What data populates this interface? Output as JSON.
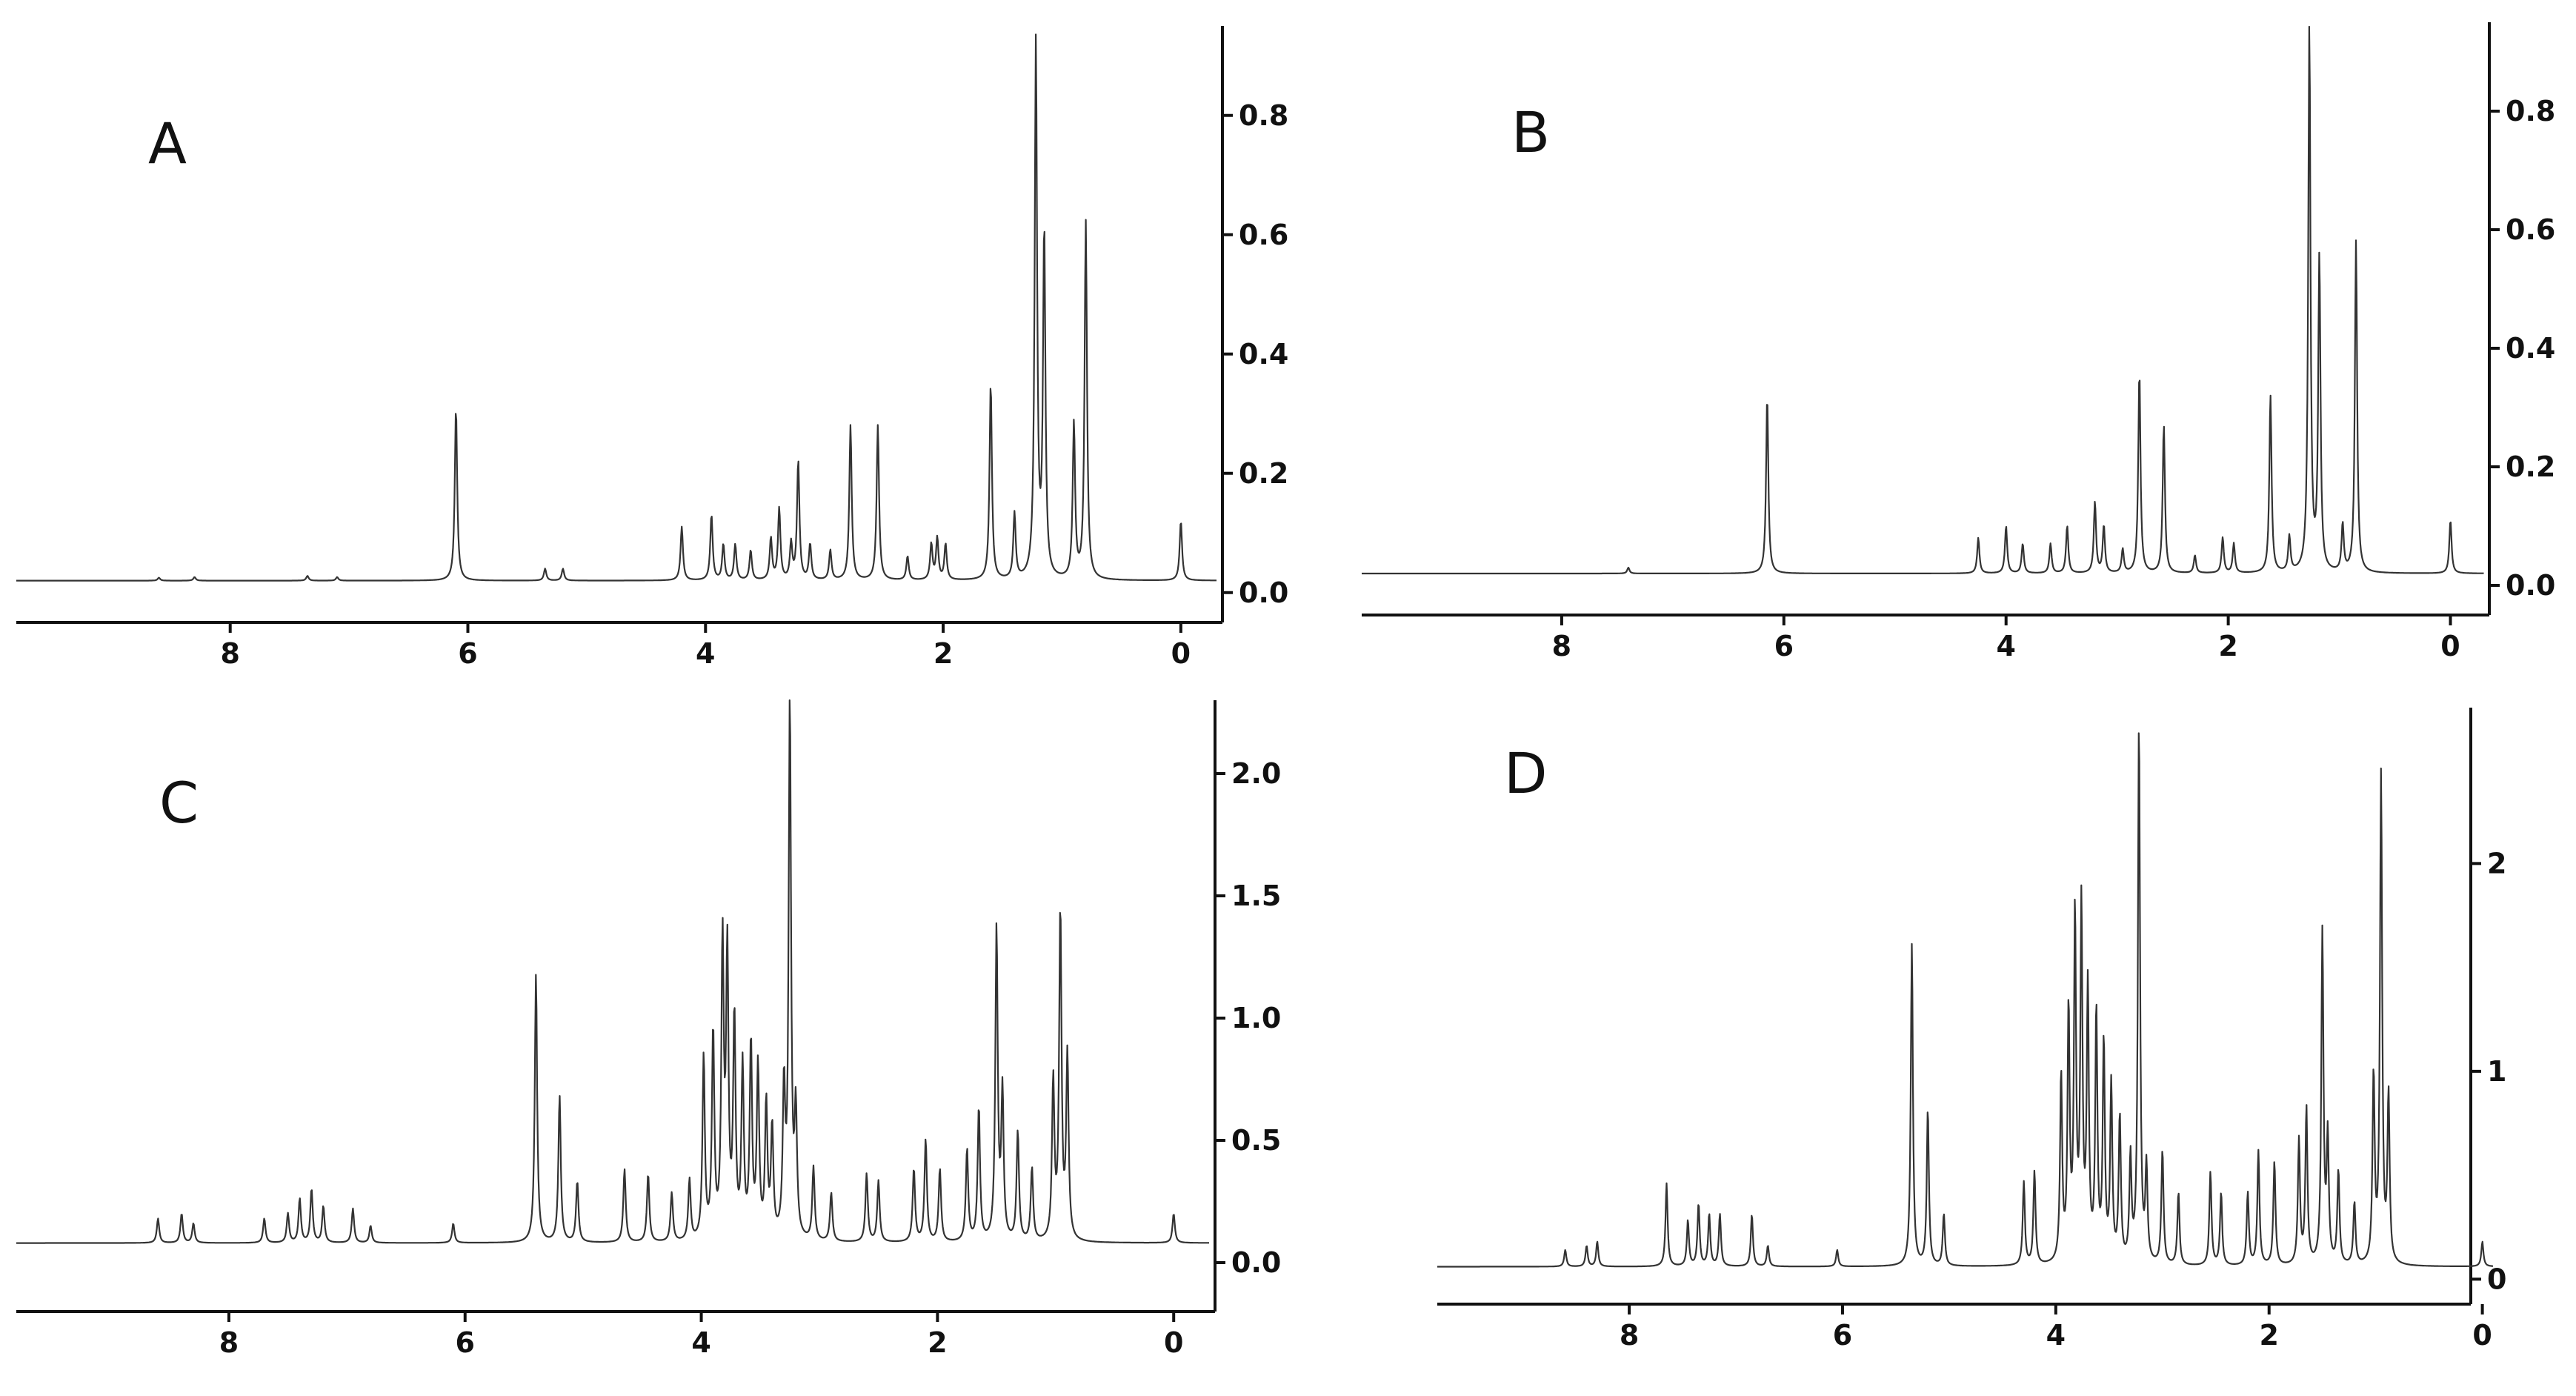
{
  "chart_data": [
    {
      "type": "line",
      "panel_label": "A",
      "xlim": [
        9.8,
        -0.35
      ],
      "ylim": [
        -0.05,
        0.95
      ],
      "x_ticks": [
        "8",
        "6",
        "4",
        "2",
        "0"
      ],
      "y_ticks": [
        "0.0",
        "0.2",
        "0.4",
        "0.6",
        "0.8"
      ],
      "baseline": 0.02,
      "peaks": [
        [
          8.6,
          0.005
        ],
        [
          8.3,
          0.006
        ],
        [
          7.35,
          0.008
        ],
        [
          7.1,
          0.006
        ],
        [
          6.1,
          0.29
        ],
        [
          5.35,
          0.02
        ],
        [
          5.2,
          0.02
        ],
        [
          4.2,
          0.09
        ],
        [
          3.95,
          0.11
        ],
        [
          3.85,
          0.06
        ],
        [
          3.75,
          0.06
        ],
        [
          3.62,
          0.05
        ],
        [
          3.45,
          0.07
        ],
        [
          3.38,
          0.12
        ],
        [
          3.28,
          0.06
        ],
        [
          3.22,
          0.2
        ],
        [
          3.12,
          0.06
        ],
        [
          2.95,
          0.05
        ],
        [
          2.78,
          0.26
        ],
        [
          2.55,
          0.26
        ],
        [
          2.3,
          0.04
        ],
        [
          2.1,
          0.06
        ],
        [
          2.05,
          0.07
        ],
        [
          1.98,
          0.06
        ],
        [
          1.6,
          0.33
        ],
        [
          1.4,
          0.11
        ],
        [
          1.22,
          0.9
        ],
        [
          1.15,
          0.58
        ],
        [
          0.9,
          0.26
        ],
        [
          0.8,
          0.6
        ],
        [
          0.0,
          0.1
        ]
      ]
    },
    {
      "type": "line",
      "panel_label": "B",
      "xlim": [
        9.8,
        -0.35
      ],
      "ylim": [
        -0.05,
        0.95
      ],
      "x_ticks": [
        "8",
        "6",
        "4",
        "2",
        "0"
      ],
      "y_ticks": [
        "0.0",
        "0.2",
        "0.4",
        "0.6",
        "0.8"
      ],
      "baseline": 0.02,
      "peaks": [
        [
          7.4,
          0.01
        ],
        [
          6.15,
          0.3
        ],
        [
          4.25,
          0.06
        ],
        [
          4.0,
          0.08
        ],
        [
          3.85,
          0.05
        ],
        [
          3.6,
          0.05
        ],
        [
          3.45,
          0.08
        ],
        [
          3.2,
          0.12
        ],
        [
          3.12,
          0.08
        ],
        [
          2.95,
          0.04
        ],
        [
          2.8,
          0.34
        ],
        [
          2.58,
          0.25
        ],
        [
          2.3,
          0.03
        ],
        [
          2.05,
          0.06
        ],
        [
          1.95,
          0.05
        ],
        [
          1.62,
          0.3
        ],
        [
          1.45,
          0.06
        ],
        [
          1.27,
          0.92
        ],
        [
          1.18,
          0.53
        ],
        [
          0.97,
          0.08
        ],
        [
          0.85,
          0.56
        ],
        [
          0.0,
          0.09
        ]
      ]
    },
    {
      "type": "line",
      "panel_label": "C",
      "xlim": [
        9.8,
        -0.35
      ],
      "ylim": [
        -0.2,
        2.3
      ],
      "x_ticks": [
        "8",
        "6",
        "4",
        "2",
        "0"
      ],
      "y_ticks": [
        "0.0",
        "0.5",
        "1.0",
        "1.5",
        "2.0"
      ],
      "baseline": 0.08,
      "peaks": [
        [
          8.6,
          0.1
        ],
        [
          8.4,
          0.12
        ],
        [
          8.3,
          0.08
        ],
        [
          7.7,
          0.1
        ],
        [
          7.5,
          0.12
        ],
        [
          7.4,
          0.18
        ],
        [
          7.3,
          0.22
        ],
        [
          7.2,
          0.15
        ],
        [
          6.95,
          0.14
        ],
        [
          6.8,
          0.07
        ],
        [
          6.1,
          0.08
        ],
        [
          5.4,
          1.1
        ],
        [
          5.2,
          0.6
        ],
        [
          5.05,
          0.25
        ],
        [
          4.65,
          0.3
        ],
        [
          4.45,
          0.28
        ],
        [
          4.25,
          0.2
        ],
        [
          4.1,
          0.25
        ],
        [
          3.98,
          0.75
        ],
        [
          3.9,
          0.85
        ],
        [
          3.82,
          1.2
        ],
        [
          3.78,
          1.15
        ],
        [
          3.72,
          0.9
        ],
        [
          3.65,
          0.7
        ],
        [
          3.58,
          0.8
        ],
        [
          3.52,
          0.7
        ],
        [
          3.45,
          0.55
        ],
        [
          3.4,
          0.45
        ],
        [
          3.3,
          0.6
        ],
        [
          3.25,
          2.2
        ],
        [
          3.2,
          0.5
        ],
        [
          3.05,
          0.3
        ],
        [
          2.9,
          0.2
        ],
        [
          2.6,
          0.28
        ],
        [
          2.5,
          0.25
        ],
        [
          2.2,
          0.3
        ],
        [
          2.1,
          0.42
        ],
        [
          1.98,
          0.3
        ],
        [
          1.75,
          0.38
        ],
        [
          1.65,
          0.55
        ],
        [
          1.5,
          1.28
        ],
        [
          1.45,
          0.6
        ],
        [
          1.32,
          0.45
        ],
        [
          1.2,
          0.3
        ],
        [
          1.02,
          0.65
        ],
        [
          0.96,
          1.35
        ],
        [
          0.9,
          0.75
        ],
        [
          0.0,
          0.12
        ]
      ]
    },
    {
      "type": "line",
      "panel_label": "D",
      "xlim": [
        9.8,
        -0.1
      ],
      "ylim": [
        -0.12,
        2.75
      ],
      "x_ticks": [
        "8",
        "6",
        "4",
        "2",
        "0"
      ],
      "y_ticks": [
        "0",
        "1",
        "2"
      ],
      "baseline": 0.06,
      "peaks": [
        [
          8.6,
          0.08
        ],
        [
          8.4,
          0.1
        ],
        [
          8.3,
          0.12
        ],
        [
          7.65,
          0.4
        ],
        [
          7.45,
          0.22
        ],
        [
          7.35,
          0.3
        ],
        [
          7.25,
          0.25
        ],
        [
          7.15,
          0.25
        ],
        [
          6.85,
          0.25
        ],
        [
          6.7,
          0.1
        ],
        [
          6.05,
          0.08
        ],
        [
          5.35,
          1.55
        ],
        [
          5.2,
          0.75
        ],
        [
          5.05,
          0.25
        ],
        [
          4.3,
          0.4
        ],
        [
          4.2,
          0.45
        ],
        [
          3.95,
          0.9
        ],
        [
          3.88,
          1.2
        ],
        [
          3.82,
          1.65
        ],
        [
          3.76,
          1.7
        ],
        [
          3.7,
          1.3
        ],
        [
          3.62,
          1.2
        ],
        [
          3.55,
          1.05
        ],
        [
          3.48,
          0.85
        ],
        [
          3.4,
          0.7
        ],
        [
          3.3,
          0.5
        ],
        [
          3.22,
          2.6
        ],
        [
          3.15,
          0.45
        ],
        [
          3.0,
          0.55
        ],
        [
          2.85,
          0.35
        ],
        [
          2.55,
          0.45
        ],
        [
          2.45,
          0.35
        ],
        [
          2.2,
          0.35
        ],
        [
          2.1,
          0.55
        ],
        [
          1.95,
          0.5
        ],
        [
          1.72,
          0.6
        ],
        [
          1.65,
          0.75
        ],
        [
          1.5,
          1.6
        ],
        [
          1.45,
          0.6
        ],
        [
          1.35,
          0.45
        ],
        [
          1.2,
          0.3
        ],
        [
          1.02,
          0.9
        ],
        [
          0.95,
          2.35
        ],
        [
          0.88,
          0.8
        ],
        [
          0.0,
          0.12
        ]
      ]
    }
  ]
}
